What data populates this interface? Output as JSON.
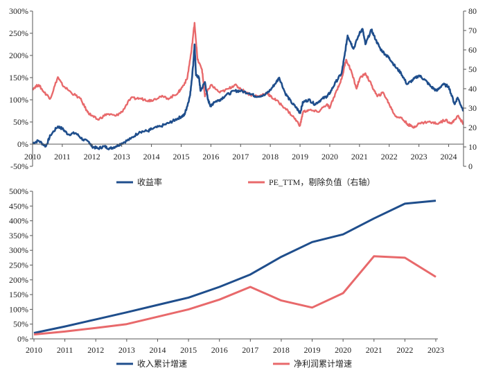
{
  "colors": {
    "blue": "#1f4e8c",
    "red": "#e8696b"
  },
  "chart_data": [
    {
      "type": "line",
      "panel": "top",
      "x_range": [
        2010,
        2024.5
      ],
      "x_ticks": [
        "2010",
        "2011",
        "2012",
        "2013",
        "2014",
        "2015",
        "2016",
        "2017",
        "2018",
        "2019",
        "2020",
        "2021",
        "2022",
        "2023",
        "2024"
      ],
      "y_left": {
        "range": [
          -50,
          300
        ],
        "ticks": [
          "-50%",
          "0%",
          "50%",
          "100%",
          "150%",
          "200%",
          "250%",
          "300%"
        ]
      },
      "y_right": {
        "range": [
          0,
          80
        ],
        "ticks": [
          "0",
          "10",
          "20",
          "30",
          "40",
          "50",
          "60",
          "70",
          "80"
        ]
      },
      "legend": {
        "placement": "bottom"
      },
      "series": [
        {
          "name": "收益率",
          "axis": "left",
          "color": "#1f4e8c",
          "points": [
            [
              2010.0,
              2
            ],
            [
              2010.2,
              8
            ],
            [
              2010.45,
              -5
            ],
            [
              2010.6,
              20
            ],
            [
              2010.85,
              40
            ],
            [
              2011.0,
              35
            ],
            [
              2011.2,
              22
            ],
            [
              2011.45,
              25
            ],
            [
              2011.7,
              10
            ],
            [
              2011.9,
              5
            ],
            [
              2012.0,
              -5
            ],
            [
              2012.2,
              -10
            ],
            [
              2012.4,
              -5
            ],
            [
              2012.6,
              -10
            ],
            [
              2012.8,
              -5
            ],
            [
              2013.0,
              2
            ],
            [
              2013.3,
              12
            ],
            [
              2013.6,
              28
            ],
            [
              2013.9,
              30
            ],
            [
              2014.0,
              34
            ],
            [
              2014.3,
              40
            ],
            [
              2014.6,
              48
            ],
            [
              2014.8,
              55
            ],
            [
              2015.0,
              62
            ],
            [
              2015.1,
              65
            ],
            [
              2015.2,
              85
            ],
            [
              2015.3,
              110
            ],
            [
              2015.4,
              175
            ],
            [
              2015.45,
              225
            ],
            [
              2015.5,
              155
            ],
            [
              2015.6,
              150
            ],
            [
              2015.65,
              120
            ],
            [
              2015.8,
              140
            ],
            [
              2015.9,
              100
            ],
            [
              2016.0,
              85
            ],
            [
              2016.1,
              95
            ],
            [
              2016.3,
              100
            ],
            [
              2016.5,
              110
            ],
            [
              2016.8,
              120
            ],
            [
              2017.0,
              120
            ],
            [
              2017.3,
              115
            ],
            [
              2017.5,
              108
            ],
            [
              2017.8,
              110
            ],
            [
              2018.0,
              122
            ],
            [
              2018.2,
              140
            ],
            [
              2018.3,
              150
            ],
            [
              2018.5,
              115
            ],
            [
              2018.7,
              95
            ],
            [
              2018.9,
              80
            ],
            [
              2019.0,
              70
            ],
            [
              2019.1,
              95
            ],
            [
              2019.3,
              100
            ],
            [
              2019.5,
              90
            ],
            [
              2019.7,
              100
            ],
            [
              2019.9,
              108
            ],
            [
              2020.0,
              115
            ],
            [
              2020.2,
              140
            ],
            [
              2020.4,
              160
            ],
            [
              2020.5,
              200
            ],
            [
              2020.6,
              245
            ],
            [
              2020.7,
              230
            ],
            [
              2020.8,
              215
            ],
            [
              2021.0,
              250
            ],
            [
              2021.1,
              260
            ],
            [
              2021.2,
              225
            ],
            [
              2021.4,
              258
            ],
            [
              2021.55,
              235
            ],
            [
              2021.7,
              215
            ],
            [
              2021.9,
              200
            ],
            [
              2022.0,
              195
            ],
            [
              2022.2,
              175
            ],
            [
              2022.4,
              160
            ],
            [
              2022.6,
              135
            ],
            [
              2022.8,
              145
            ],
            [
              2023.0,
              155
            ],
            [
              2023.2,
              145
            ],
            [
              2023.4,
              130
            ],
            [
              2023.6,
              120
            ],
            [
              2023.8,
              135
            ],
            [
              2024.0,
              130
            ],
            [
              2024.2,
              90
            ],
            [
              2024.3,
              105
            ],
            [
              2024.5,
              75
            ]
          ]
        },
        {
          "name": "PE_TTM，剔除负值（右轴）",
          "axis": "right",
          "color": "#e8696b",
          "points": [
            [
              2010.0,
              40
            ],
            [
              2010.2,
              42
            ],
            [
              2010.4,
              38
            ],
            [
              2010.6,
              35
            ],
            [
              2010.85,
              46
            ],
            [
              2011.0,
              42
            ],
            [
              2011.3,
              38
            ],
            [
              2011.6,
              35
            ],
            [
              2011.85,
              28
            ],
            [
              2012.0,
              26
            ],
            [
              2012.2,
              24
            ],
            [
              2012.5,
              27
            ],
            [
              2012.8,
              26
            ],
            [
              2013.0,
              28
            ],
            [
              2013.3,
              35
            ],
            [
              2013.6,
              35
            ],
            [
              2013.9,
              34
            ],
            [
              2014.0,
              34
            ],
            [
              2014.3,
              36
            ],
            [
              2014.6,
              35
            ],
            [
              2014.9,
              38
            ],
            [
              2015.0,
              40
            ],
            [
              2015.2,
              45
            ],
            [
              2015.35,
              60
            ],
            [
              2015.45,
              74
            ],
            [
              2015.55,
              55
            ],
            [
              2015.7,
              50
            ],
            [
              2015.8,
              36
            ],
            [
              2016.0,
              42
            ],
            [
              2016.3,
              38
            ],
            [
              2016.6,
              40
            ],
            [
              2016.8,
              42
            ],
            [
              2017.0,
              40
            ],
            [
              2017.3,
              37
            ],
            [
              2017.6,
              36
            ],
            [
              2017.9,
              38
            ],
            [
              2018.0,
              36
            ],
            [
              2018.2,
              34
            ],
            [
              2018.5,
              30
            ],
            [
              2018.8,
              25
            ],
            [
              2019.0,
              21
            ],
            [
              2019.1,
              28
            ],
            [
              2019.3,
              29
            ],
            [
              2019.6,
              28
            ],
            [
              2019.9,
              32
            ],
            [
              2020.0,
              30
            ],
            [
              2020.2,
              38
            ],
            [
              2020.4,
              45
            ],
            [
              2020.55,
              55
            ],
            [
              2020.7,
              50
            ],
            [
              2020.9,
              40
            ],
            [
              2021.0,
              45
            ],
            [
              2021.2,
              48
            ],
            [
              2021.4,
              42
            ],
            [
              2021.6,
              36
            ],
            [
              2021.8,
              38
            ],
            [
              2022.0,
              32
            ],
            [
              2022.2,
              26
            ],
            [
              2022.4,
              25
            ],
            [
              2022.6,
              22
            ],
            [
              2022.8,
              20
            ],
            [
              2023.0,
              22
            ],
            [
              2023.3,
              23
            ],
            [
              2023.6,
              22
            ],
            [
              2023.9,
              24
            ],
            [
              2024.1,
              22
            ],
            [
              2024.3,
              26
            ],
            [
              2024.5,
              22
            ]
          ]
        }
      ]
    },
    {
      "type": "line",
      "panel": "bottom",
      "categories": [
        "2010",
        "2011",
        "2012",
        "2013",
        "2014",
        "2015",
        "2016",
        "2017",
        "2018",
        "2019",
        "2020",
        "2021",
        "2022",
        "2023"
      ],
      "y_range": [
        0,
        500
      ],
      "y_ticks": [
        "0%",
        "50%",
        "100%",
        "150%",
        "200%",
        "250%",
        "300%",
        "350%",
        "400%",
        "450%",
        "500%"
      ],
      "legend": {
        "placement": "bottom"
      },
      "series": [
        {
          "name": "收入累计增速",
          "color": "#1f4e8c",
          "values": [
            20,
            42,
            66,
            90,
            115,
            140,
            176,
            218,
            278,
            328,
            354,
            408,
            458,
            468
          ]
        },
        {
          "name": "净利润累计增速",
          "color": "#e8696b",
          "values": [
            15,
            25,
            37,
            50,
            75,
            100,
            133,
            176,
            130,
            106,
            155,
            280,
            275,
            210
          ]
        }
      ]
    }
  ]
}
